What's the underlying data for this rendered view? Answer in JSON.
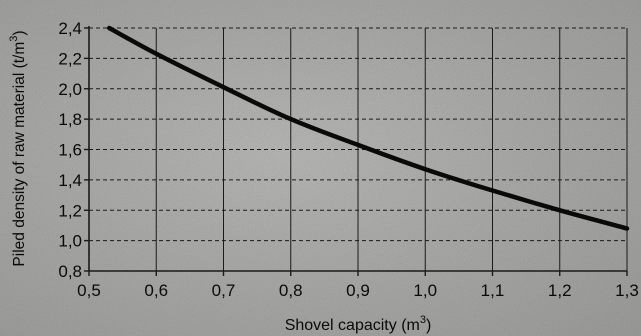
{
  "colors": {
    "background": "#a9aaa8",
    "grid": "#1a1a1a",
    "curve": "#0a0a0a",
    "text": "#0a0a0a"
  },
  "chart_data": {
    "type": "line",
    "xlabel": "Shovel capacity (m",
    "xlabel_sup": "3",
    "xlabel_end": ")",
    "ylabel": "Piled density of raw material (t/m",
    "ylabel_sup": "3",
    "ylabel_end": ")",
    "xlim": [
      0.5,
      1.3
    ],
    "ylim": [
      0.8,
      2.4
    ],
    "x_ticks": [
      0.5,
      0.6,
      0.7,
      0.8,
      0.9,
      1.0,
      1.1,
      1.2,
      1.3
    ],
    "x_tick_labels": [
      "0,5",
      "0,6",
      "0,7",
      "0,8",
      "0,9",
      "1,0",
      "1,1",
      "1,2",
      "1,3"
    ],
    "y_ticks": [
      0.8,
      1.0,
      1.2,
      1.4,
      1.6,
      1.8,
      2.0,
      2.2,
      2.4
    ],
    "y_tick_labels": [
      "0,8",
      "1,0",
      "1,2",
      "1,4",
      "1,6",
      "1,8",
      "2,0",
      "2,2",
      "2,4"
    ],
    "grid": {
      "vertical": "solid",
      "horizontal": "dashed"
    },
    "series": [
      {
        "x": [
          0.53,
          0.6,
          0.7,
          0.8,
          0.9,
          1.0,
          1.1,
          1.2,
          1.3
        ],
        "y": [
          2.4,
          2.23,
          2.01,
          1.8,
          1.63,
          1.47,
          1.33,
          1.2,
          1.08
        ]
      }
    ]
  }
}
